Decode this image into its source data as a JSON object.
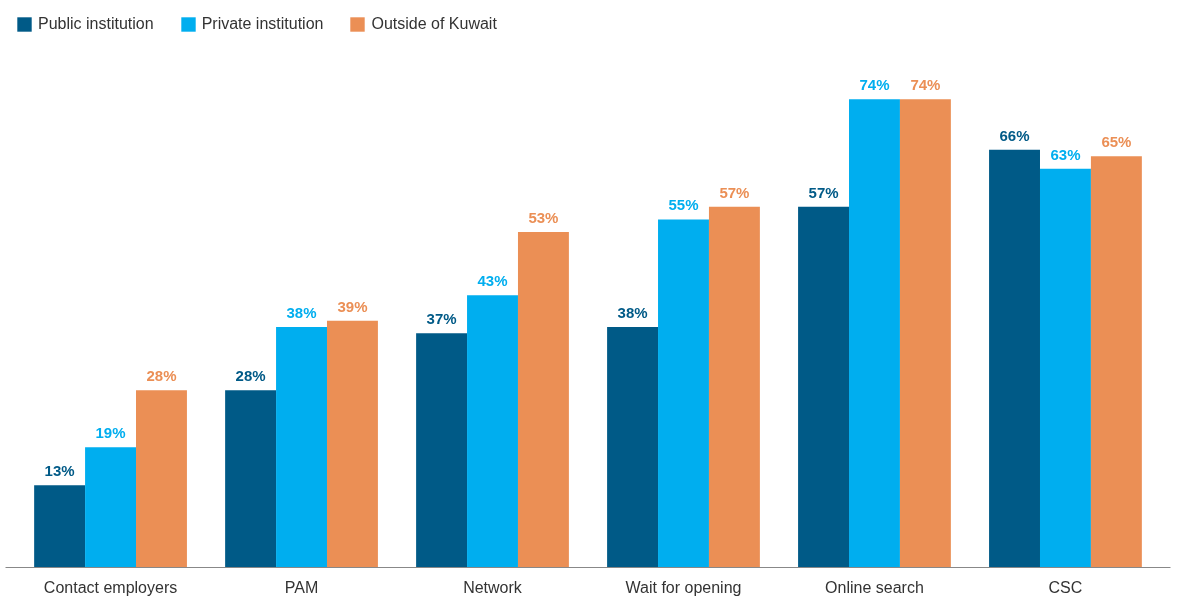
{
  "chart_data": {
    "type": "bar",
    "categories": [
      "Contact employers",
      "PAM",
      "Network",
      "Wait for opening",
      "Online search",
      "CSC"
    ],
    "series": [
      {
        "name": "Public institution",
        "color": "#005a87",
        "values": [
          13,
          28,
          37,
          38,
          57,
          66
        ],
        "value_labels": [
          "13%",
          "28%",
          "37%",
          "38%",
          "57%",
          "66%"
        ]
      },
      {
        "name": "Private institution",
        "color": "#00aeef",
        "values": [
          19,
          38,
          43,
          55,
          74,
          63
        ],
        "value_labels": [
          "19%",
          "38%",
          "43%",
          "55%",
          "74%",
          "63%"
        ]
      },
      {
        "name": "Outside of Kuwait",
        "color": "#eb8f55",
        "values": [
          28,
          39,
          53,
          57,
          74,
          65
        ],
        "value_labels": [
          "28%",
          "39%",
          "53%",
          "57%",
          "74%",
          "65%"
        ]
      }
    ],
    "legend": "top left",
    "grid": false
  }
}
